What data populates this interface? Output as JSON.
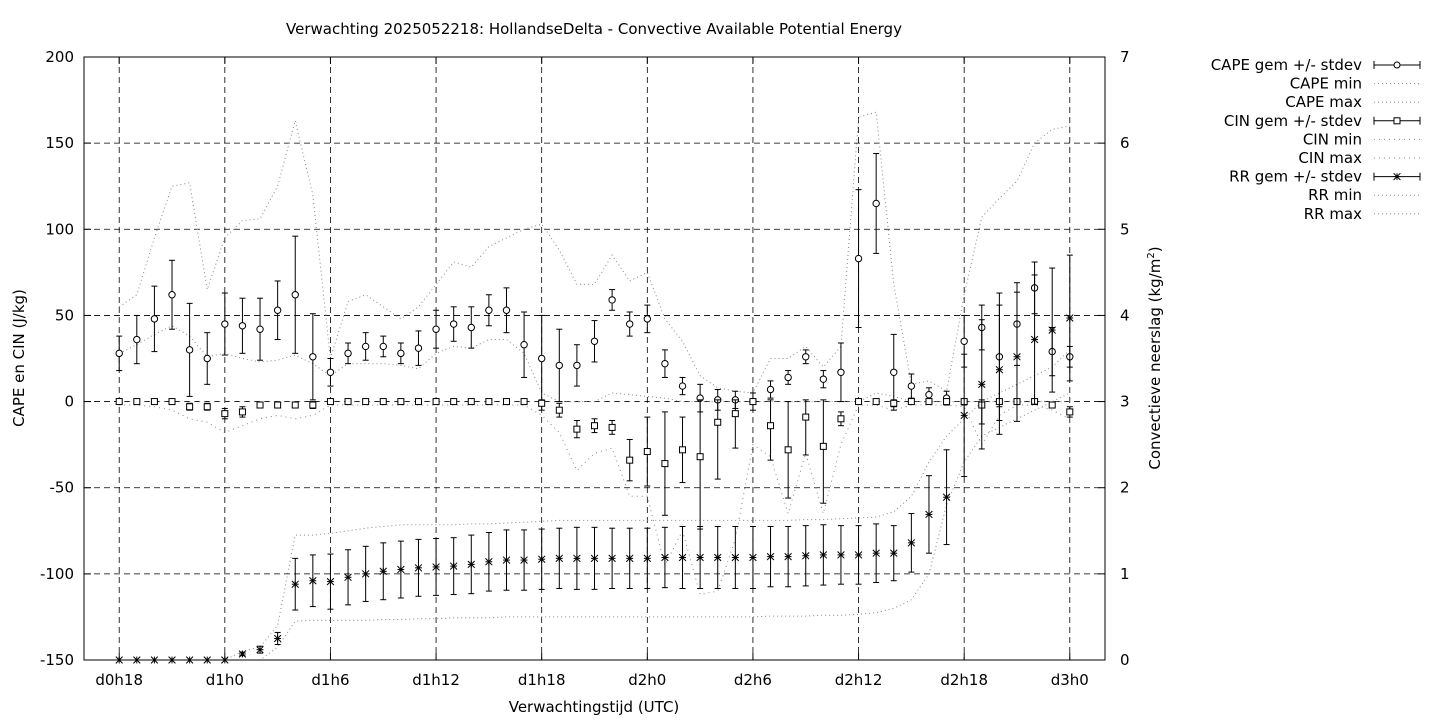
{
  "chart_data": {
    "type": "line",
    "title": "Verwachting 2025052218: HollandseDelta - Convective Available Potential Energy",
    "xlabel": "Verwachtingstijd (UTC)",
    "ylabel_left": "CAPE en CIN (J/kg)",
    "ylabel_right": "Convectieve neerslag (kg/m²)",
    "ylabel_right_base": "Convectieve neerslag (kg/m",
    "ylabel_right_sup": "2",
    "ylabel_right_tail": ")",
    "x_tick_labels": [
      "d0h18",
      "d1h0",
      "d1h6",
      "d1h12",
      "d1h18",
      "d2h0",
      "d2h6",
      "d2h12",
      "d2h18",
      "d3h0"
    ],
    "x_tick_hours": [
      18,
      24,
      30,
      36,
      42,
      48,
      54,
      60,
      66,
      72
    ],
    "xlim": [
      16,
      74
    ],
    "ylim_left": [
      -150,
      200
    ],
    "y_ticks_left": [
      -150,
      -100,
      -50,
      0,
      50,
      100,
      150,
      200
    ],
    "ylim_right": [
      0,
      7
    ],
    "y_ticks_right": [
      0,
      1,
      2,
      3,
      4,
      5,
      6,
      7
    ],
    "grid": true,
    "legend_position": "outside-right",
    "legend": [
      "CAPE gem +/- stdev",
      "CAPE min",
      "CAPE max",
      "CIN gem +/- stdev",
      "CIN min",
      "CIN max",
      "RR gem +/- stdev",
      "RR min",
      "RR max"
    ],
    "x": [
      18,
      19,
      20,
      21,
      22,
      23,
      24,
      25,
      26,
      27,
      28,
      29,
      30,
      31,
      32,
      33,
      34,
      35,
      36,
      37,
      38,
      39,
      40,
      41,
      42,
      43,
      44,
      45,
      46,
      47,
      48,
      49,
      50,
      51,
      52,
      53,
      54,
      55,
      56,
      57,
      58,
      59,
      60,
      61,
      62,
      63,
      64,
      65,
      66,
      67,
      68,
      69,
      70,
      71,
      72
    ],
    "cape_mean": [
      28,
      36,
      48,
      62,
      30,
      25,
      45,
      44,
      42,
      53,
      62,
      26,
      17,
      28,
      32,
      32,
      28,
      31,
      42,
      45,
      43,
      53,
      53,
      33,
      25,
      21,
      21,
      35,
      59,
      45,
      48,
      22,
      9,
      2,
      1,
      1,
      0,
      7,
      14,
      26,
      13,
      17,
      83,
      115,
      17,
      9,
      4,
      2,
      35,
      43,
      26,
      45,
      66,
      29,
      26
    ],
    "cape_stdev": [
      10,
      14,
      19,
      20,
      27,
      15,
      18,
      16,
      18,
      17,
      34,
      25,
      8,
      6,
      8,
      6,
      6,
      10,
      11,
      10,
      12,
      9,
      13,
      19,
      25,
      21,
      12,
      12,
      6,
      7,
      8,
      8,
      5,
      8,
      6,
      5,
      5,
      5,
      4,
      4,
      5,
      17,
      40,
      29,
      22,
      7,
      4,
      4,
      15,
      13,
      37,
      24,
      15,
      14,
      6
    ],
    "cape_min": [
      28,
      33,
      39,
      44,
      38,
      26,
      28,
      25,
      23,
      24,
      27,
      22,
      15,
      22,
      22,
      22,
      21,
      19,
      28,
      32,
      31,
      36,
      36,
      28,
      5,
      0,
      0,
      0,
      5,
      4,
      3,
      2,
      0,
      0,
      0,
      0,
      0,
      0,
      0,
      0,
      0,
      0,
      0,
      5,
      3,
      0,
      0,
      0,
      0,
      0,
      0,
      0,
      0,
      0,
      0
    ],
    "cape_max": [
      55,
      62,
      95,
      125,
      127,
      65,
      95,
      105,
      106,
      125,
      163,
      120,
      25,
      58,
      62,
      55,
      48,
      55,
      68,
      81,
      78,
      90,
      95,
      100,
      103,
      88,
      68,
      68,
      85,
      70,
      75,
      48,
      35,
      15,
      8,
      6,
      5,
      25,
      25,
      32,
      20,
      32,
      165,
      168,
      68,
      10,
      12,
      6,
      62,
      107,
      118,
      128,
      150,
      158,
      160
    ],
    "cin_mean": [
      0,
      0,
      0,
      0,
      -3,
      -3,
      -7,
      -6,
      -2,
      -2,
      -2,
      -2,
      0,
      0,
      0,
      0,
      0,
      0,
      0,
      0,
      0,
      0,
      0,
      0,
      -1,
      -5,
      -16,
      -14,
      -15,
      -34,
      -29,
      -36,
      -28,
      -32,
      -12,
      -7,
      0,
      -14,
      -28,
      -9,
      -26,
      -10,
      0,
      0,
      -1,
      0,
      0,
      0,
      0,
      -2,
      0,
      0,
      0,
      -2,
      -6
    ],
    "cin_stdev": [
      1,
      1,
      1,
      1,
      2,
      2,
      3,
      3,
      1,
      1,
      1,
      2,
      1,
      1,
      1,
      1,
      1,
      1,
      1,
      1,
      1,
      1,
      1,
      1,
      4,
      4,
      5,
      4,
      4,
      12,
      20,
      30,
      19,
      42,
      33,
      20,
      1,
      20,
      28,
      22,
      33,
      4,
      1,
      1,
      2,
      1,
      1,
      1,
      2,
      11,
      3,
      1,
      1,
      1,
      3
    ],
    "cin_min": [
      -2,
      -2,
      -3,
      -5,
      -10,
      -12,
      -18,
      -14,
      -10,
      -8,
      -10,
      -8,
      -2,
      -2,
      -2,
      -2,
      -2,
      -2,
      -2,
      -2,
      -2,
      -2,
      -2,
      -2,
      -8,
      -18,
      -40,
      -30,
      -27,
      -55,
      -55,
      -95,
      -75,
      -112,
      -110,
      -80,
      -25,
      -32,
      -65,
      -30,
      -65,
      -25,
      -2,
      -2,
      -5,
      -2,
      -2,
      -2,
      -3,
      -25,
      -8,
      -2,
      -2,
      -5,
      -10
    ],
    "cin_max": [
      0,
      0,
      0,
      0,
      0,
      0,
      0,
      0,
      0,
      0,
      0,
      0,
      0,
      0,
      0,
      0,
      0,
      0,
      0,
      0,
      0,
      0,
      0,
      0,
      0,
      0,
      0,
      0,
      0,
      0,
      0,
      0,
      0,
      0,
      0,
      0,
      0,
      0,
      0,
      0,
      0,
      0,
      0,
      0,
      0,
      0,
      0,
      0,
      0,
      0,
      0,
      0,
      0,
      0,
      0
    ],
    "rr_mean": [
      0,
      0,
      0,
      0,
      0,
      0,
      0,
      0.07,
      0.12,
      0.25,
      0.88,
      0.92,
      0.91,
      0.96,
      1.0,
      1.03,
      1.05,
      1.07,
      1.08,
      1.09,
      1.11,
      1.14,
      1.16,
      1.16,
      1.17,
      1.18,
      1.18,
      1.18,
      1.18,
      1.18,
      1.18,
      1.19,
      1.19,
      1.19,
      1.19,
      1.19,
      1.19,
      1.2,
      1.2,
      1.21,
      1.22,
      1.22,
      1.22,
      1.24,
      1.24,
      1.36,
      1.69,
      1.89,
      2.84,
      3.2,
      3.37,
      3.52,
      3.72,
      3.83,
      3.97
    ],
    "rr_stdev": [
      0,
      0,
      0,
      0,
      0,
      0,
      0,
      0.02,
      0.04,
      0.07,
      0.3,
      0.3,
      0.32,
      0.32,
      0.32,
      0.33,
      0.33,
      0.33,
      0.33,
      0.33,
      0.34,
      0.34,
      0.35,
      0.35,
      0.35,
      0.35,
      0.36,
      0.36,
      0.35,
      0.35,
      0.35,
      0.35,
      0.36,
      0.36,
      0.36,
      0.36,
      0.36,
      0.35,
      0.35,
      0.35,
      0.35,
      0.34,
      0.34,
      0.34,
      0.32,
      0.34,
      0.45,
      0.55,
      0.71,
      0.75,
      0.75,
      0.75,
      0.75,
      0.72,
      0.73
    ],
    "rr_min": [
      0,
      0,
      0,
      0,
      0,
      0,
      0,
      0,
      0,
      0.15,
      0.45,
      0.46,
      0.46,
      0.46,
      0.46,
      0.47,
      0.47,
      0.48,
      0.48,
      0.49,
      0.49,
      0.49,
      0.5,
      0.5,
      0.5,
      0.5,
      0.5,
      0.5,
      0.5,
      0.5,
      0.5,
      0.5,
      0.5,
      0.5,
      0.5,
      0.5,
      0.5,
      0.51,
      0.51,
      0.51,
      0.52,
      0.52,
      0.53,
      0.55,
      0.6,
      0.7,
      1.0,
      1.8,
      2.3,
      2.6,
      2.7,
      2.8,
      2.9,
      3.0,
      3.1
    ],
    "rr_max": [
      0,
      0,
      0,
      0,
      0,
      0,
      0,
      0.1,
      0.15,
      0.4,
      1.45,
      1.45,
      1.47,
      1.5,
      1.53,
      1.55,
      1.57,
      1.57,
      1.57,
      1.57,
      1.58,
      1.58,
      1.59,
      1.6,
      1.61,
      1.62,
      1.62,
      1.62,
      1.62,
      1.62,
      1.62,
      1.62,
      1.62,
      1.62,
      1.62,
      1.62,
      1.62,
      1.62,
      1.62,
      1.63,
      1.63,
      1.64,
      1.65,
      1.66,
      1.72,
      1.9,
      2.3,
      2.6,
      2.8,
      3.0,
      3.1,
      3.2,
      3.3,
      3.4,
      3.6
    ]
  }
}
